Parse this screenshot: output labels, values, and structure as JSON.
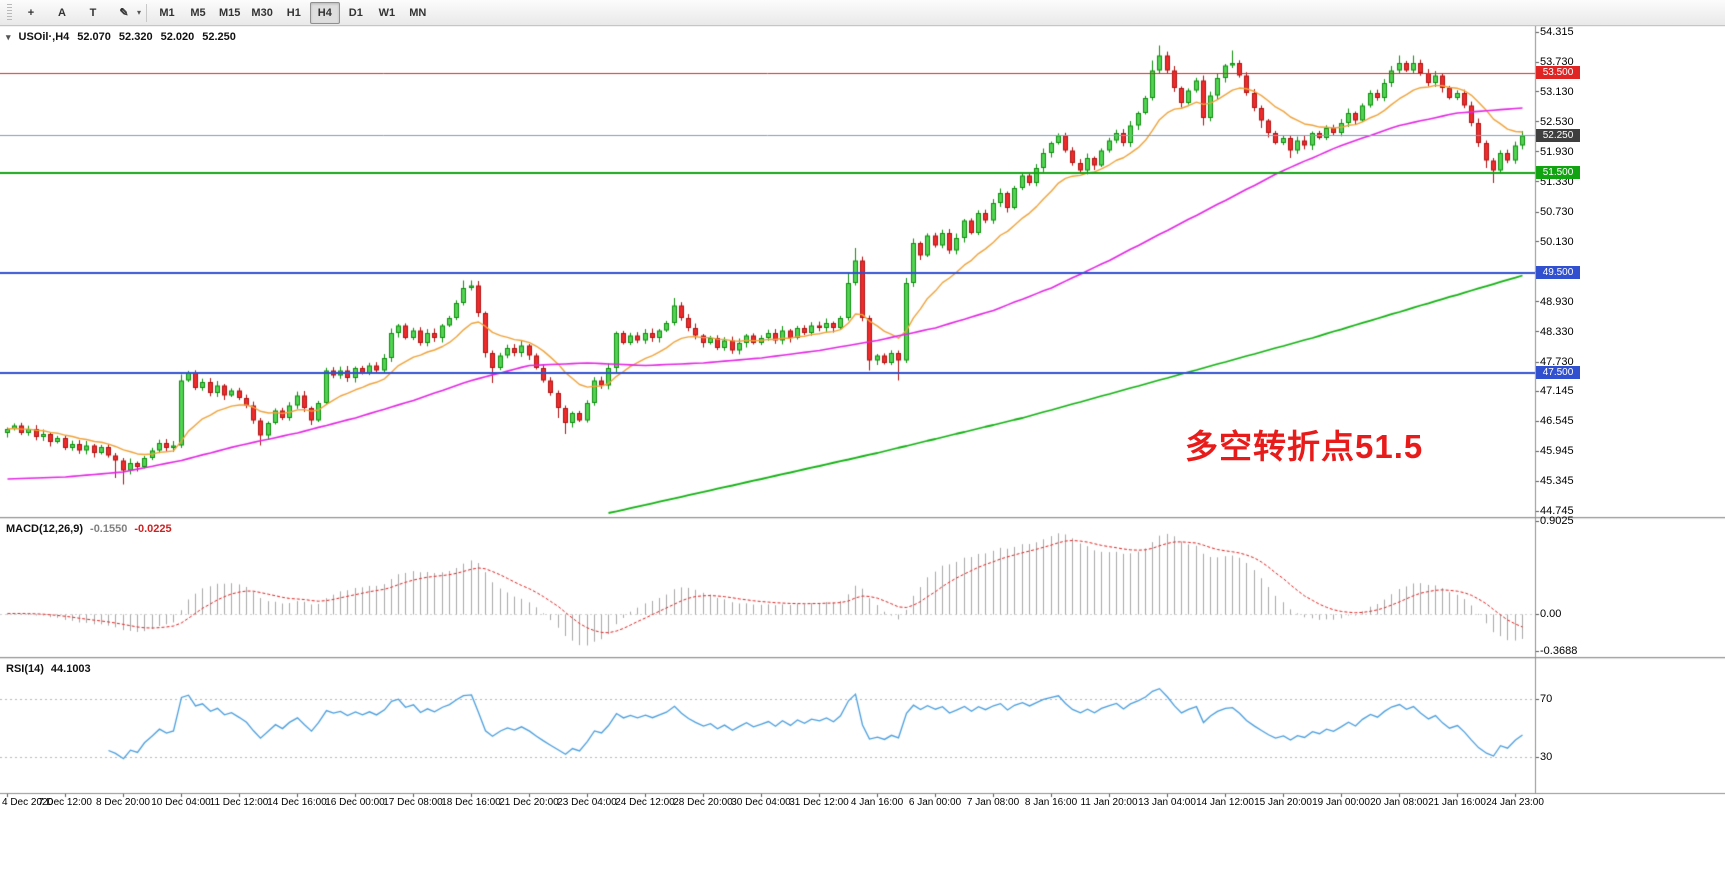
{
  "toolbar": {
    "tools": [
      {
        "name": "crosshair-tool",
        "glyph": "+"
      },
      {
        "name": "text-tool",
        "glyph": "A"
      },
      {
        "name": "text-label-tool",
        "glyph": "T"
      },
      {
        "name": "drawing-tools",
        "glyph": "✎"
      }
    ],
    "drawing_dropdown_glyph": "▾",
    "timeframes": [
      "M1",
      "M5",
      "M15",
      "M30",
      "H1",
      "H4",
      "D1",
      "W1",
      "MN"
    ],
    "active_timeframe": "H4"
  },
  "chart": {
    "title": {
      "symbol": "USOil·,H4",
      "open": "52.070",
      "high": "52.320",
      "low": "52.020",
      "close": "52.250"
    },
    "annotation": {
      "text": "多空转折点51.5",
      "color": "#e81b1b"
    }
  },
  "macd_panel": {
    "name": "MACD(12,26,9)",
    "value_main": "-0.1550",
    "value_signal": "-0.0225",
    "axis": [
      "0.9025",
      "0.00",
      "-0.3688"
    ]
  },
  "rsi_panel": {
    "name": "RSI(14)",
    "value": "44.1003",
    "axis": [
      "70",
      "30"
    ]
  },
  "chart_data": {
    "type": "candlestick",
    "symbol": "USOil",
    "timeframe": "H4",
    "ohlc_current": {
      "open": 52.07,
      "high": 52.32,
      "low": 52.02,
      "close": 52.25
    },
    "ylim": [
      44.62,
      54.44
    ],
    "price_ticks": [
      "54.315",
      "53.730",
      "53.130",
      "52.530",
      "51.930",
      "51.330",
      "50.730",
      "50.130",
      "49.530",
      "48.930",
      "48.330",
      "47.730",
      "47.145",
      "46.545",
      "45.945",
      "45.345",
      "44.745"
    ],
    "time_labels": [
      "4 Dec 2020",
      "7 Dec 12:00",
      "8 Dec 20:00",
      "10 Dec 04:00",
      "11 Dec 12:00",
      "14 Dec 16:00",
      "16 Dec 00:00",
      "17 Dec 08:00",
      "18 Dec 16:00",
      "21 Dec 20:00",
      "23 Dec 04:00",
      "24 Dec 12:00",
      "28 Dec 20:00",
      "30 Dec 04:00",
      "31 Dec 12:00",
      "4 Jan 16:00",
      "6 Jan 00:00",
      "7 Jan 08:00",
      "8 Jan 16:00",
      "11 Jan 20:00",
      "13 Jan 04:00",
      "14 Jan 12:00",
      "15 Jan 20:00",
      "19 Jan 00:00",
      "20 Jan 08:00",
      "21 Jan 16:00",
      "24 Jan 23:00"
    ],
    "candles_per_time_label": 8,
    "first_open": 46.3,
    "closes": [
      46.38,
      46.45,
      46.3,
      46.38,
      46.22,
      46.28,
      46.12,
      46.2,
      46.0,
      46.08,
      45.95,
      46.05,
      45.9,
      46.02,
      45.85,
      45.75,
      45.55,
      45.7,
      45.62,
      45.8,
      45.95,
      46.1,
      46.0,
      46.05,
      47.35,
      47.5,
      47.2,
      47.32,
      47.1,
      47.25,
      47.05,
      47.15,
      47.0,
      46.85,
      46.55,
      46.25,
      46.5,
      46.75,
      46.6,
      46.85,
      47.05,
      46.8,
      46.55,
      46.9,
      47.55,
      47.45,
      47.55,
      47.4,
      47.6,
      47.5,
      47.65,
      47.55,
      47.8,
      48.3,
      48.45,
      48.2,
      48.35,
      48.1,
      48.3,
      48.2,
      48.45,
      48.6,
      48.9,
      49.2,
      49.25,
      48.7,
      47.9,
      47.6,
      47.85,
      48.0,
      47.9,
      48.05,
      47.85,
      47.6,
      47.35,
      47.1,
      46.8,
      46.5,
      46.7,
      46.55,
      46.9,
      47.35,
      47.25,
      47.6,
      48.3,
      48.1,
      48.25,
      48.15,
      48.3,
      48.2,
      48.35,
      48.5,
      48.85,
      48.6,
      48.4,
      48.25,
      48.1,
      48.2,
      48.0,
      48.15,
      47.95,
      48.1,
      48.25,
      48.1,
      48.2,
      48.3,
      48.15,
      48.35,
      48.2,
      48.4,
      48.3,
      48.45,
      48.4,
      48.5,
      48.4,
      48.6,
      49.3,
      49.75,
      48.6,
      47.75,
      47.85,
      47.7,
      47.9,
      47.75,
      49.3,
      50.1,
      49.85,
      50.25,
      50.05,
      50.3,
      49.95,
      50.2,
      50.55,
      50.3,
      50.7,
      50.55,
      50.9,
      51.1,
      50.8,
      51.2,
      51.45,
      51.3,
      51.6,
      51.9,
      52.1,
      52.25,
      51.95,
      51.7,
      51.55,
      51.8,
      51.65,
      51.95,
      52.15,
      52.3,
      52.1,
      52.45,
      52.7,
      53.0,
      53.55,
      53.85,
      53.55,
      53.2,
      52.9,
      53.15,
      53.35,
      52.6,
      53.05,
      53.4,
      53.65,
      53.7,
      53.45,
      53.1,
      52.8,
      52.55,
      52.3,
      52.1,
      52.2,
      51.95,
      52.15,
      52.05,
      52.3,
      52.2,
      52.4,
      52.3,
      52.5,
      52.7,
      52.55,
      52.85,
      53.1,
      53.0,
      53.3,
      53.55,
      53.7,
      53.55,
      53.7,
      53.5,
      53.3,
      53.45,
      53.2,
      53.0,
      53.1,
      52.85,
      52.5,
      52.1,
      51.75,
      51.55,
      51.9,
      51.75,
      52.05,
      52.25
    ],
    "default_wick": 0.07,
    "wick_overrides": {
      "15": [
        0.05,
        0.35
      ],
      "16": [
        0.05,
        0.28
      ],
      "24": [
        0.12,
        0.05
      ],
      "35": [
        0.05,
        0.2
      ],
      "63": [
        0.15,
        0.05
      ],
      "64": [
        0.1,
        0.05
      ],
      "67": [
        0.05,
        0.3
      ],
      "76": [
        0.05,
        0.2
      ],
      "77": [
        0.05,
        0.22
      ],
      "92": [
        0.15,
        0.05
      ],
      "116": [
        0.2,
        0.05
      ],
      "117": [
        0.25,
        0.05
      ],
      "119": [
        0.05,
        0.2
      ],
      "123": [
        0.05,
        0.4
      ],
      "124": [
        0.1,
        0.05
      ],
      "158": [
        0.2,
        0.05
      ],
      "159": [
        0.2,
        0.05
      ],
      "165": [
        0.1,
        0.15
      ],
      "169": [
        0.25,
        0.05
      ],
      "173": [
        0.05,
        0.15
      ],
      "177": [
        0.05,
        0.15
      ],
      "192": [
        0.15,
        0.05
      ],
      "194": [
        0.15,
        0.05
      ],
      "204": [
        0.05,
        0.15
      ],
      "205": [
        0.05,
        0.25
      ]
    },
    "colors": {
      "up_fill": "#53d253",
      "up_border": "#0b8f0b",
      "down_fill": "#ee2c2c",
      "down_border": "#b01010"
    },
    "ma_fast": {
      "period": 13,
      "color": "#efa33a",
      "width": 1.4
    },
    "ma_mid": {
      "color": "#e426e4",
      "width": 1.6,
      "anchors": [
        [
          0,
          45.38
        ],
        [
          8,
          45.42
        ],
        [
          16,
          45.52
        ],
        [
          24,
          45.75
        ],
        [
          32,
          46.05
        ],
        [
          40,
          46.3
        ],
        [
          48,
          46.6
        ],
        [
          56,
          46.95
        ],
        [
          64,
          47.35
        ],
        [
          72,
          47.65
        ],
        [
          80,
          47.7
        ],
        [
          88,
          47.65
        ],
        [
          96,
          47.7
        ],
        [
          104,
          47.8
        ],
        [
          112,
          47.95
        ],
        [
          120,
          48.15
        ],
        [
          128,
          48.4
        ],
        [
          136,
          48.75
        ],
        [
          144,
          49.2
        ],
        [
          152,
          49.75
        ],
        [
          160,
          50.35
        ],
        [
          168,
          50.95
        ],
        [
          176,
          51.55
        ],
        [
          184,
          52.05
        ],
        [
          192,
          52.45
        ],
        [
          200,
          52.7
        ],
        [
          209,
          52.8
        ]
      ]
    },
    "ma_slow": {
      "color": "#12b212",
      "width": 1.8,
      "anchors": [
        [
          83,
          44.7
        ],
        [
          100,
          45.25
        ],
        [
          120,
          45.9
        ],
        [
          140,
          46.6
        ],
        [
          160,
          47.4
        ],
        [
          180,
          48.2
        ],
        [
          195,
          48.85
        ],
        [
          209,
          49.45
        ]
      ]
    },
    "price_lines": [
      {
        "price": 53.5,
        "label": "53.500",
        "color": "#e02424",
        "width": 1
      },
      {
        "price": 52.25,
        "label": "52.250",
        "color": "#7f9db9",
        "width": 1,
        "label_bg": "#3f3f3f"
      },
      {
        "price": 51.5,
        "label": "51.500",
        "color": "#12a312",
        "width": 2
      },
      {
        "price": 49.5,
        "label": "49.500",
        "color": "#3050d0",
        "width": 2
      },
      {
        "price": 47.5,
        "label": "47.500",
        "color": "#3050d0",
        "width": 2
      }
    ],
    "macd": {
      "fast": 12,
      "slow": 26,
      "signal": 9,
      "ylim": [
        -0.423,
        0.922
      ],
      "bar_color": "#a8a8a8",
      "signal_color": "#dd2222",
      "zero_line_color": "#cfcfcf"
    },
    "rsi": {
      "period": 14,
      "ylim": [
        5,
        98
      ],
      "color": "#4a9ede",
      "levels": [
        70,
        30
      ],
      "level_color": "#b9b9b9"
    }
  }
}
